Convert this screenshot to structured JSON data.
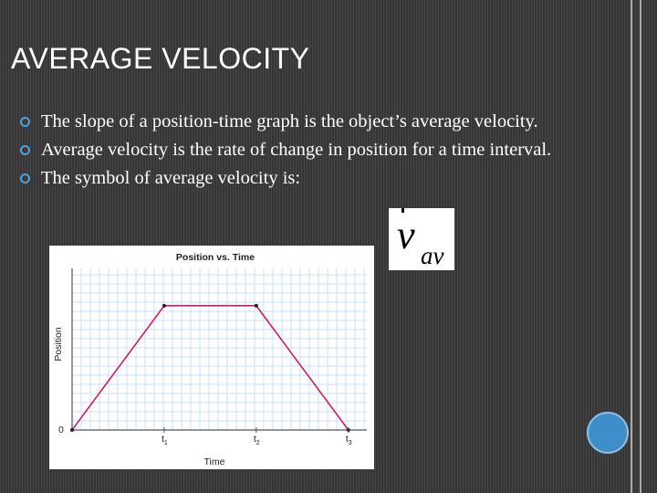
{
  "slide": {
    "title": "AVERAGE VELOCITY",
    "bullets": [
      "The slope of a position-time graph is the object’s average velocity.",
      "Average velocity is the rate of change in position for a time interval.",
      "The symbol of average velocity is:"
    ],
    "symbol": {
      "main": "v",
      "subscript": "av"
    }
  },
  "colors": {
    "background": "#3c3c3c",
    "accent": "#4aa3df",
    "line": "#cc1f6e",
    "grid": "#c9dff0"
  },
  "chart_data": {
    "type": "line",
    "title": "Position vs. Time",
    "xlabel": "Time",
    "ylabel": "Position",
    "origin_label": "0",
    "x_ticks": [
      {
        "base": "t",
        "sub": "1",
        "value": 1
      },
      {
        "base": "t",
        "sub": "2",
        "value": 2
      },
      {
        "base": "t",
        "sub": "3",
        "value": 3
      }
    ],
    "xlim": [
      0,
      3.2
    ],
    "ylim": [
      0,
      1.3
    ],
    "grid": true,
    "series": [
      {
        "x": [
          0,
          1,
          2,
          3
        ],
        "y": [
          0,
          1,
          1,
          0
        ]
      }
    ]
  }
}
